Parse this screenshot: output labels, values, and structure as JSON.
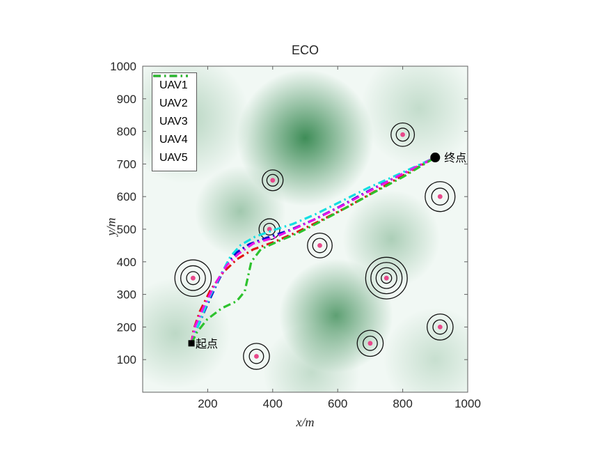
{
  "chart_data": {
    "type": "line",
    "title": "ECO",
    "xlabel": "x/m",
    "ylabel": "y/m",
    "xlim": [
      0,
      1000
    ],
    "ylim": [
      0,
      1000
    ],
    "xticks": [
      200,
      400,
      600,
      800,
      1000
    ],
    "yticks": [
      100,
      200,
      300,
      400,
      500,
      600,
      700,
      800,
      900,
      1000
    ],
    "grid": false,
    "legend_position": "top-left",
    "axis_color": "#5f5f5f",
    "tick_label_color": "#262626",
    "plot_base_color": "#F1F8F4",
    "blob_color": "#1F7A3C",
    "series": [
      {
        "name": "UAV1",
        "color": "#0E0ECE",
        "style": "dash-dot",
        "points": [
          [
            150,
            150
          ],
          [
            168,
            198
          ],
          [
            196,
            262
          ],
          [
            232,
            340
          ],
          [
            262,
            398
          ],
          [
            288,
            428
          ],
          [
            328,
            454
          ],
          [
            388,
            476
          ],
          [
            452,
            497
          ],
          [
            522,
            527
          ],
          [
            602,
            567
          ],
          [
            682,
            611
          ],
          [
            772,
            656
          ],
          [
            842,
            691
          ],
          [
            900,
            720
          ]
        ]
      },
      {
        "name": "UAV2",
        "color": "#E11414",
        "style": "dash-dot",
        "points": [
          [
            150,
            150
          ],
          [
            157,
            193
          ],
          [
            176,
            248
          ],
          [
            208,
            312
          ],
          [
            248,
            368
          ],
          [
            290,
            408
          ],
          [
            340,
            438
          ],
          [
            402,
            460
          ],
          [
            470,
            489
          ],
          [
            542,
            524
          ],
          [
            622,
            564
          ],
          [
            702,
            609
          ],
          [
            792,
            660
          ],
          [
            900,
            720
          ]
        ]
      },
      {
        "name": "UAV3",
        "color": "#12DEE2",
        "style": "dash-dot",
        "points": [
          [
            150,
            150
          ],
          [
            174,
            214
          ],
          [
            204,
            288
          ],
          [
            240,
            360
          ],
          [
            270,
            416
          ],
          [
            302,
            452
          ],
          [
            346,
            477
          ],
          [
            402,
            497
          ],
          [
            462,
            516
          ],
          [
            532,
            546
          ],
          [
            612,
            586
          ],
          [
            692,
            626
          ],
          [
            782,
            666
          ],
          [
            900,
            720
          ]
        ]
      },
      {
        "name": "UAV4",
        "color": "#EA14EA",
        "style": "dash-dot",
        "points": [
          [
            150,
            150
          ],
          [
            162,
            204
          ],
          [
            189,
            264
          ],
          [
            224,
            334
          ],
          [
            259,
            390
          ],
          [
            294,
            424
          ],
          [
            340,
            456
          ],
          [
            402,
            473
          ],
          [
            466,
            501
          ],
          [
            536,
            533
          ],
          [
            616,
            573
          ],
          [
            696,
            616
          ],
          [
            786,
            663
          ],
          [
            900,
            720
          ]
        ]
      },
      {
        "name": "UAV5",
        "color": "#2DC22D",
        "style": "dash-dot",
        "points": [
          [
            150,
            150
          ],
          [
            167,
            184
          ],
          [
            199,
            224
          ],
          [
            244,
            258
          ],
          [
            289,
            279
          ],
          [
            314,
            309
          ],
          [
            324,
            354
          ],
          [
            334,
            400
          ],
          [
            364,
            439
          ],
          [
            420,
            464
          ],
          [
            482,
            490
          ],
          [
            552,
            526
          ],
          [
            632,
            569
          ],
          [
            712,
            613
          ],
          [
            802,
            661
          ],
          [
            900,
            720
          ]
        ]
      }
    ],
    "start": {
      "label": "起点",
      "x": 150,
      "y": 150,
      "marker": "square",
      "color": "#000000"
    },
    "end": {
      "label": "终点",
      "x": 900,
      "y": 720,
      "marker": "circle",
      "color": "#000000"
    },
    "obstacles": [
      {
        "x": 800,
        "y": 790,
        "dot_color": "#E8488B",
        "rings": [
          20,
          36
        ]
      },
      {
        "x": 400,
        "y": 650,
        "dot_color": "#E8488B",
        "rings": [
          18,
          32
        ]
      },
      {
        "x": 915,
        "y": 600,
        "dot_color": "#E8488B",
        "rings": [
          26,
          46
        ]
      },
      {
        "x": 390,
        "y": 500,
        "dot_color": "#E8488B",
        "rings": [
          18,
          32
        ]
      },
      {
        "x": 545,
        "y": 450,
        "dot_color": "#E8488B",
        "rings": [
          22,
          38
        ]
      },
      {
        "x": 155,
        "y": 350,
        "dot_color": "#E8488B",
        "rings": [
          20,
          38,
          56
        ]
      },
      {
        "x": 750,
        "y": 350,
        "dot_color": "#E8488B",
        "rings": [
          16,
          32,
          48,
          64
        ]
      },
      {
        "x": 915,
        "y": 200,
        "dot_color": "#E8488B",
        "rings": [
          22,
          40
        ]
      },
      {
        "x": 700,
        "y": 150,
        "dot_color": "#E8488B",
        "rings": [
          22,
          40
        ]
      },
      {
        "x": 350,
        "y": 110,
        "dot_color": "#E8488B",
        "rings": [
          22,
          40
        ]
      }
    ],
    "heatmap_blobs": [
      {
        "x": 500,
        "y": 780,
        "r": 210,
        "opacity": 0.85
      },
      {
        "x": 595,
        "y": 235,
        "r": 175,
        "opacity": 0.7
      },
      {
        "x": 300,
        "y": 555,
        "r": 140,
        "opacity": 0.38
      },
      {
        "x": 765,
        "y": 470,
        "r": 150,
        "opacity": 0.33
      },
      {
        "x": 130,
        "y": 840,
        "r": 200,
        "opacity": 0.28
      },
      {
        "x": 850,
        "y": 870,
        "r": 180,
        "opacity": 0.22
      },
      {
        "x": 100,
        "y": 180,
        "r": 170,
        "opacity": 0.25
      },
      {
        "x": 900,
        "y": 100,
        "r": 160,
        "opacity": 0.2
      },
      {
        "x": 520,
        "y": 60,
        "r": 150,
        "opacity": 0.22
      }
    ]
  }
}
